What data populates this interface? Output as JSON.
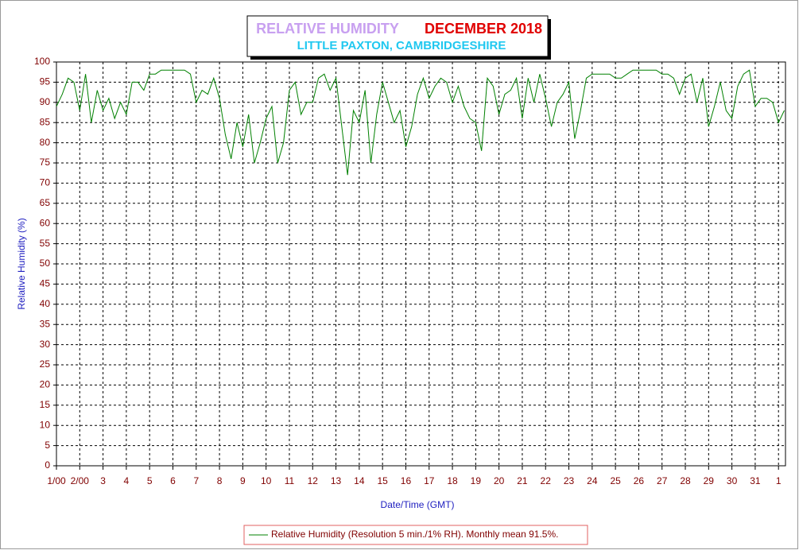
{
  "chart_data": {
    "type": "line",
    "title": "RELATIVE HUMIDITY",
    "title_month": "DECEMBER 2018",
    "subtitle": "LITTLE PAXTON, CAMBRIDGESHIRE",
    "x_label": "Date/Time (GMT)",
    "y_label": "Relative Humidity (%)",
    "x": [
      0,
      0.25,
      0.5,
      0.75,
      1,
      1.25,
      1.5,
      1.75,
      2,
      2.25,
      2.5,
      2.75,
      3,
      3.25,
      3.5,
      3.75,
      4,
      4.25,
      4.5,
      4.75,
      5,
      5.25,
      5.5,
      5.75,
      6,
      6.25,
      6.5,
      6.75,
      7,
      7.25,
      7.5,
      7.75,
      8,
      8.25,
      8.5,
      8.75,
      9,
      9.25,
      9.5,
      9.75,
      10,
      10.25,
      10.5,
      10.75,
      11,
      11.25,
      11.5,
      11.75,
      12,
      12.25,
      12.5,
      12.75,
      13,
      13.25,
      13.5,
      13.75,
      14,
      14.25,
      14.5,
      14.75,
      15,
      15.25,
      15.5,
      15.75,
      16,
      16.25,
      16.5,
      16.75,
      17,
      17.25,
      17.5,
      17.75,
      18,
      18.25,
      18.5,
      18.75,
      19,
      19.25,
      19.5,
      19.75,
      20,
      20.25,
      20.5,
      20.75,
      21,
      21.25,
      21.5,
      21.75,
      22,
      22.25,
      22.5,
      22.75,
      23,
      23.25,
      23.5,
      23.75,
      24,
      24.25,
      24.5,
      24.75,
      25,
      25.25,
      25.5,
      25.75,
      26,
      26.25,
      26.5,
      26.75,
      27,
      27.25,
      27.5,
      27.75,
      28,
      28.25,
      28.5,
      28.75,
      29,
      29.25,
      29.5,
      29.75,
      30,
      30.25,
      30.5,
      30.75,
      31,
      31.25
    ],
    "series": [
      {
        "name": "Relative Humidity (Resolution 5 min./1% RH). Monthly mean 91.5%.",
        "color": "#008000",
        "values": [
          89,
          92,
          96,
          95,
          88,
          97,
          85,
          93,
          88,
          91,
          86,
          90,
          87,
          95,
          95,
          93,
          97,
          97,
          98,
          98,
          98,
          98,
          98,
          97,
          90,
          93,
          92,
          96,
          91,
          82,
          76,
          85,
          79,
          87,
          75,
          80,
          86,
          89,
          75,
          80,
          93,
          95,
          87,
          90,
          90,
          96,
          97,
          93,
          96,
          84,
          72,
          88,
          85,
          93,
          75,
          87,
          95,
          90,
          85,
          88,
          79,
          84,
          92,
          96,
          91,
          94,
          96,
          95,
          90,
          94,
          89,
          86,
          85,
          78,
          96,
          94,
          87,
          92,
          93,
          96,
          86,
          96,
          90,
          97,
          91,
          84,
          90,
          92,
          95,
          81,
          88,
          96,
          97,
          97,
          97,
          97,
          96,
          96,
          97,
          98,
          98,
          98,
          98,
          98,
          97,
          97,
          96,
          92,
          96,
          97,
          90,
          96,
          84,
          89,
          95,
          88,
          86,
          94,
          97,
          98,
          89,
          91,
          91,
          90,
          85,
          88
        ]
      }
    ],
    "xlim": [
      0,
      31.3
    ],
    "ylim": [
      0,
      100
    ],
    "xticks": [
      {
        "value": 0,
        "label": "1/00"
      },
      {
        "value": 1,
        "label": "2/00"
      },
      {
        "value": 2,
        "label": "3"
      },
      {
        "value": 3,
        "label": "4"
      },
      {
        "value": 4,
        "label": "5"
      },
      {
        "value": 5,
        "label": "6"
      },
      {
        "value": 6,
        "label": "7"
      },
      {
        "value": 7,
        "label": "8"
      },
      {
        "value": 8,
        "label": "9"
      },
      {
        "value": 9,
        "label": "10"
      },
      {
        "value": 10,
        "label": "11"
      },
      {
        "value": 11,
        "label": "12"
      },
      {
        "value": 12,
        "label": "13"
      },
      {
        "value": 13,
        "label": "14"
      },
      {
        "value": 14,
        "label": "15"
      },
      {
        "value": 15,
        "label": "16"
      },
      {
        "value": 16,
        "label": "17"
      },
      {
        "value": 17,
        "label": "18"
      },
      {
        "value": 18,
        "label": "19"
      },
      {
        "value": 19,
        "label": "20"
      },
      {
        "value": 20,
        "label": "21"
      },
      {
        "value": 21,
        "label": "22"
      },
      {
        "value": 22,
        "label": "23"
      },
      {
        "value": 23,
        "label": "24"
      },
      {
        "value": 24,
        "label": "25"
      },
      {
        "value": 25,
        "label": "26"
      },
      {
        "value": 26,
        "label": "27"
      },
      {
        "value": 27,
        "label": "28"
      },
      {
        "value": 28,
        "label": "29"
      },
      {
        "value": 29,
        "label": "30"
      },
      {
        "value": 30,
        "label": "31"
      },
      {
        "value": 31,
        "label": "1"
      }
    ],
    "yticks": [
      0,
      5,
      10,
      15,
      20,
      25,
      30,
      35,
      40,
      45,
      50,
      55,
      60,
      65,
      70,
      75,
      80,
      85,
      90,
      95,
      100
    ],
    "grid": true
  }
}
